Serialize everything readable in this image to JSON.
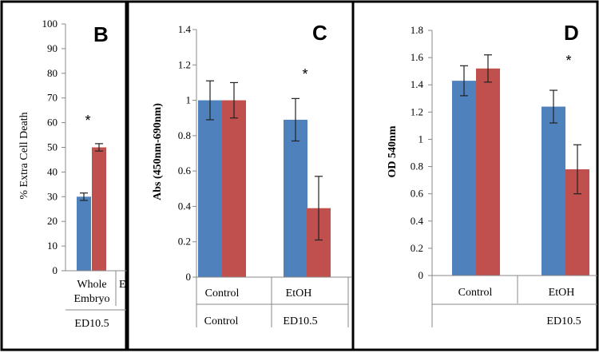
{
  "colors": {
    "series1": "#4F81BD",
    "series2": "#C0504D",
    "axis": "#888888",
    "frame": "#000000",
    "errbar": "#222222"
  },
  "chart_data": [
    {
      "type": "bar",
      "panel_label": "B",
      "ylabel": "% Extra Cell Death",
      "ylim": [
        0,
        100
      ],
      "yticks": [
        "0",
        "10",
        "20",
        "30",
        "40",
        "50",
        "60",
        "70",
        "80",
        "90",
        "100"
      ],
      "categories": [
        "Whole Embryo"
      ],
      "category_lines": [
        [
          "Whole",
          "Embryo"
        ]
      ],
      "partial_category_label": "E",
      "group_label": "ED10.5",
      "series": [
        {
          "values": [
            30
          ],
          "errors": [
            1.5
          ]
        },
        {
          "values": [
            50
          ],
          "errors": [
            1.5
          ]
        }
      ],
      "significance": "*"
    },
    {
      "type": "bar",
      "panel_label": "C",
      "ylabel": "Abs (450nm-690nm)",
      "ylim": [
        0,
        1.4
      ],
      "yticks": [
        "0",
        "0.2",
        "0.4",
        "0.6",
        "0.8",
        "1",
        "1.2",
        "1.4"
      ],
      "categories": [
        "Control",
        "EtOH"
      ],
      "group_labels": [
        "Control",
        "ED10.5"
      ],
      "series": [
        {
          "values": [
            1.0,
            0.89
          ],
          "errors": [
            0.11,
            0.12
          ]
        },
        {
          "values": [
            1.0,
            0.39
          ],
          "errors": [
            0.1,
            0.18
          ]
        }
      ],
      "significance": "*"
    },
    {
      "type": "bar",
      "panel_label": "D",
      "ylabel": "OD 540nm",
      "ylim": [
        0,
        1.8
      ],
      "yticks": [
        "0",
        "0.2",
        "0.4",
        "0.6",
        "0.8",
        "1",
        "1.2",
        "1.4",
        "1.6",
        "1.8"
      ],
      "categories": [
        "Control",
        "EtOH"
      ],
      "group_label": "ED10.5",
      "series": [
        {
          "values": [
            1.43,
            1.24
          ],
          "errors": [
            0.11,
            0.12
          ]
        },
        {
          "values": [
            1.52,
            0.78
          ],
          "errors": [
            0.1,
            0.18
          ]
        }
      ],
      "significance": "*"
    }
  ]
}
